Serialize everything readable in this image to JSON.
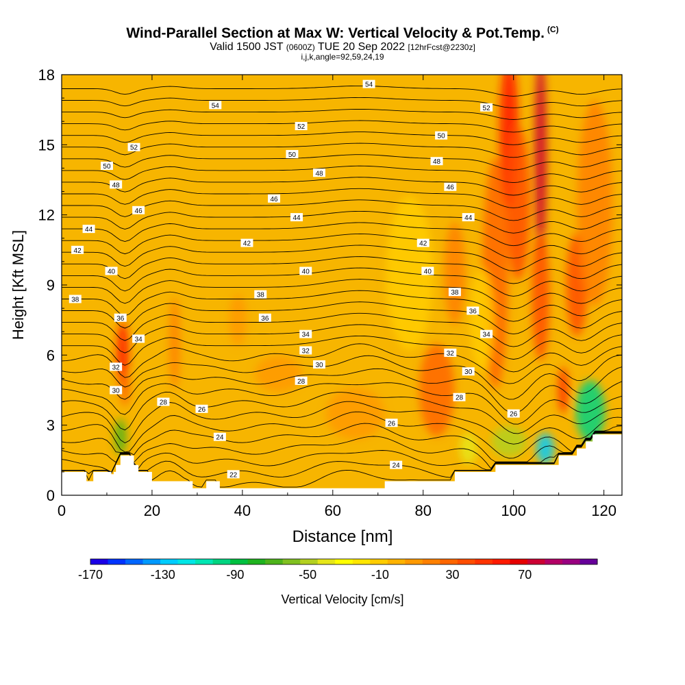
{
  "title": "Wind-Parallel Section at Max W: Vertical Velocity & Pot.Temp.",
  "title_mark": "(C)",
  "subtitle_main": "Valid 1500 JST",
  "subtitle_zone": "(0600Z)",
  "subtitle_date": "TUE 20 Sep 2022",
  "subtitle_fcst": "[12hrFcst@2230z]",
  "subtitle2": "i,j,k,angle=92,59,24,19",
  "colors": {
    "background": "#ffffff",
    "contour": "#000000",
    "base_fill": "#f7b500",
    "terrain": "#ffffff"
  },
  "chart_data": {
    "type": "heatmap",
    "xlabel": "Distance [nm]",
    "ylabel": "Height [Kft MSL]",
    "xlim": [
      0,
      124
    ],
    "ylim": [
      0,
      18
    ],
    "xticks": [
      "0",
      "20",
      "40",
      "60",
      "80",
      "100",
      "120"
    ],
    "yticks": [
      "0",
      "3",
      "6",
      "9",
      "12",
      "15",
      "18"
    ],
    "xtick_values": [
      0,
      20,
      40,
      60,
      80,
      100,
      120
    ],
    "ytick_values": [
      0,
      3,
      6,
      9,
      12,
      15,
      18
    ],
    "colorbar": {
      "label": "Vertical Velocity [cm/s]",
      "range": [
        -170,
        110
      ],
      "tick_labels": [
        "-170",
        "-130",
        "-90",
        "-50",
        "-10",
        "30",
        "70"
      ],
      "tick_values": [
        -170,
        -130,
        -90,
        -50,
        -10,
        30,
        70
      ],
      "colors": [
        "#1a00e6",
        "#0033ff",
        "#0066ff",
        "#0099ff",
        "#00ccff",
        "#00e6e6",
        "#00e6b3",
        "#00d480",
        "#00c040",
        "#1fb31f",
        "#4db31a",
        "#80c020",
        "#b3d020",
        "#e6e619",
        "#ffff00",
        "#ffe600",
        "#ffcc00",
        "#ffb300",
        "#ff9900",
        "#ff8000",
        "#ff6600",
        "#ff4d00",
        "#ff3300",
        "#ff1a00",
        "#e60000",
        "#cc0033",
        "#b30066",
        "#990080",
        "#660099"
      ]
    },
    "updrafts": [
      {
        "x": 13.5,
        "y": 6,
        "sx": 1.0,
        "sy": 1.3,
        "w": 55
      },
      {
        "x": 14,
        "y": 4.6,
        "sx": 0.8,
        "sy": 0.7,
        "w": 30
      },
      {
        "x": 25,
        "y": 6.5,
        "sx": 0.9,
        "sy": 1.8,
        "w": 15
      },
      {
        "x": 39,
        "y": 7.5,
        "sx": 1.5,
        "sy": 1.0,
        "w": 12
      },
      {
        "x": 48,
        "y": 5.2,
        "sx": 4.0,
        "sy": 0.7,
        "w": 10
      },
      {
        "x": 65,
        "y": 3.5,
        "sx": 5.0,
        "sy": 1.0,
        "w": 12
      },
      {
        "x": 83,
        "y": 4.5,
        "sx": 3.0,
        "sy": 1.8,
        "w": 25
      },
      {
        "x": 87,
        "y": 9.5,
        "sx": 1.8,
        "sy": 2.0,
        "w": 20
      },
      {
        "x": 96,
        "y": 9.5,
        "sx": 2.2,
        "sy": 4.5,
        "w": 30
      },
      {
        "x": 99,
        "y": 15.5,
        "sx": 1.6,
        "sy": 3.0,
        "w": 55
      },
      {
        "x": 101,
        "y": 12.5,
        "sx": 2.0,
        "sy": 3.0,
        "w": 40
      },
      {
        "x": 106,
        "y": 14.5,
        "sx": 1.0,
        "sy": 4.0,
        "w": 80
      },
      {
        "x": 106,
        "y": 8.5,
        "sx": 1.5,
        "sy": 2.5,
        "w": 35
      },
      {
        "x": 114,
        "y": 9.0,
        "sx": 1.8,
        "sy": 2.0,
        "w": 40
      },
      {
        "x": 111,
        "y": 4.5,
        "sx": 0.9,
        "sy": 0.9,
        "w": 45
      },
      {
        "x": 118,
        "y": 12.5,
        "sx": 3.0,
        "sy": 4.0,
        "w": 22
      }
    ],
    "downdrafts": [
      {
        "x": 13,
        "y": 2.5,
        "sx": 1.0,
        "sy": 0.7,
        "w": -70
      },
      {
        "x": 90,
        "y": 2.0,
        "sx": 1.5,
        "sy": 0.6,
        "w": -40
      },
      {
        "x": 99,
        "y": 2.3,
        "sx": 3.0,
        "sy": 0.6,
        "w": -45
      },
      {
        "x": 107,
        "y": 2.0,
        "sx": 1.5,
        "sy": 0.6,
        "w": -130
      },
      {
        "x": 117,
        "y": 3.6,
        "sx": 2.5,
        "sy": 1.2,
        "w": -100
      },
      {
        "x": 93,
        "y": 7.5,
        "sx": 2.0,
        "sy": 2.0,
        "w": -12
      },
      {
        "x": 77,
        "y": 9.5,
        "sx": 4.0,
        "sy": 3.0,
        "w": -12
      }
    ],
    "theta_contours": {
      "levels_k": [
        21,
        22,
        23,
        24,
        25,
        26,
        27,
        28,
        29,
        30,
        31,
        32,
        33,
        34,
        35,
        36,
        37,
        38,
        39,
        40,
        41,
        42,
        43,
        44,
        45,
        46,
        47,
        48,
        49,
        50,
        51,
        52,
        53,
        54,
        55
      ],
      "labels": [
        {
          "text": "54",
          "x": 68,
          "y": 17.6
        },
        {
          "text": "54",
          "x": 34,
          "y": 16.7
        },
        {
          "text": "52",
          "x": 94,
          "y": 16.6
        },
        {
          "text": "52",
          "x": 53,
          "y": 15.8
        },
        {
          "text": "52",
          "x": 16,
          "y": 14.9
        },
        {
          "text": "50",
          "x": 84,
          "y": 15.4
        },
        {
          "text": "50",
          "x": 51,
          "y": 14.6
        },
        {
          "text": "50",
          "x": 10,
          "y": 14.1
        },
        {
          "text": "48",
          "x": 83,
          "y": 14.3
        },
        {
          "text": "48",
          "x": 57,
          "y": 13.8
        },
        {
          "text": "48",
          "x": 12,
          "y": 13.3
        },
        {
          "text": "46",
          "x": 86,
          "y": 13.2
        },
        {
          "text": "46",
          "x": 47,
          "y": 12.7
        },
        {
          "text": "46",
          "x": 17,
          "y": 12.2
        },
        {
          "text": "44",
          "x": 90,
          "y": 11.9
        },
        {
          "text": "44",
          "x": 52,
          "y": 11.9
        },
        {
          "text": "44",
          "x": 6,
          "y": 11.4
        },
        {
          "text": "42",
          "x": 80,
          "y": 10.8
        },
        {
          "text": "42",
          "x": 41,
          "y": 10.8
        },
        {
          "text": "42",
          "x": 3.5,
          "y": 10.5
        },
        {
          "text": "40",
          "x": 81,
          "y": 9.6
        },
        {
          "text": "40",
          "x": 54,
          "y": 9.6
        },
        {
          "text": "40",
          "x": 11,
          "y": 9.6
        },
        {
          "text": "38",
          "x": 87,
          "y": 8.7
        },
        {
          "text": "38",
          "x": 44,
          "y": 8.6
        },
        {
          "text": "38",
          "x": 3,
          "y": 8.4
        },
        {
          "text": "36",
          "x": 91,
          "y": 7.9
        },
        {
          "text": "36",
          "x": 45,
          "y": 7.6
        },
        {
          "text": "36",
          "x": 13,
          "y": 7.6
        },
        {
          "text": "34",
          "x": 94,
          "y": 6.9
        },
        {
          "text": "34",
          "x": 54,
          "y": 6.9
        },
        {
          "text": "34",
          "x": 17,
          "y": 6.7
        },
        {
          "text": "32",
          "x": 86,
          "y": 6.1
        },
        {
          "text": "32",
          "x": 54,
          "y": 6.2
        },
        {
          "text": "32",
          "x": 12,
          "y": 5.5
        },
        {
          "text": "30",
          "x": 90,
          "y": 5.3
        },
        {
          "text": "30",
          "x": 57,
          "y": 5.6
        },
        {
          "text": "30",
          "x": 12,
          "y": 4.5
        },
        {
          "text": "28",
          "x": 88,
          "y": 4.2
        },
        {
          "text": "28",
          "x": 53,
          "y": 4.9
        },
        {
          "text": "28",
          "x": 22.5,
          "y": 4.0
        },
        {
          "text": "26",
          "x": 100,
          "y": 3.5
        },
        {
          "text": "26",
          "x": 73,
          "y": 3.1
        },
        {
          "text": "26",
          "x": 31,
          "y": 3.7
        },
        {
          "text": "24",
          "x": 74,
          "y": 1.3
        },
        {
          "text": "24",
          "x": 35,
          "y": 2.5
        },
        {
          "text": "22",
          "x": 38,
          "y": 0.9
        }
      ]
    },
    "terrain_heights_kft": [
      [
        0,
        1.0
      ],
      [
        5.5,
        1.0
      ],
      [
        5.5,
        0.6
      ],
      [
        7,
        0.6
      ],
      [
        7,
        1.0
      ],
      [
        11,
        1.0
      ],
      [
        11,
        0.9
      ],
      [
        11.5,
        0.9
      ],
      [
        11.5,
        1.0
      ],
      [
        12,
        1.0
      ],
      [
        12,
        1.3
      ],
      [
        13,
        1.3
      ],
      [
        13,
        1.7
      ],
      [
        16,
        1.7
      ],
      [
        16,
        1.3
      ],
      [
        17,
        1.3
      ],
      [
        17,
        1.0
      ],
      [
        20,
        1.0
      ],
      [
        20,
        0.6
      ],
      [
        29,
        0.6
      ],
      [
        29,
        0.3
      ],
      [
        32,
        0.3
      ],
      [
        32,
        0.6
      ],
      [
        35,
        0.6
      ],
      [
        35,
        0.3
      ],
      [
        71.5,
        0.3
      ],
      [
        71.5,
        0.6
      ],
      [
        87,
        0.6
      ],
      [
        87,
        1.0
      ],
      [
        96,
        1.0
      ],
      [
        96,
        1.3
      ],
      [
        110,
        1.3
      ],
      [
        110,
        1.7
      ],
      [
        114,
        1.7
      ],
      [
        114,
        2.0
      ],
      [
        116,
        2.0
      ],
      [
        116,
        2.3
      ],
      [
        117.5,
        2.3
      ],
      [
        117.5,
        2.6
      ],
      [
        124,
        2.6
      ]
    ]
  }
}
